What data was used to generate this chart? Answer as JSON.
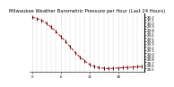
{
  "title": "Milwaukee Weather Barometric Pressure per Hour (Last 24 Hours)",
  "hours": [
    0,
    1,
    2,
    3,
    4,
    5,
    6,
    7,
    8,
    9,
    10,
    11,
    12,
    13,
    14,
    15,
    16,
    17,
    18,
    19,
    20,
    21,
    22,
    23
  ],
  "pressure": [
    30.18,
    30.14,
    30.08,
    29.98,
    29.85,
    29.7,
    29.55,
    29.38,
    29.2,
    29.02,
    28.87,
    28.74,
    28.63,
    28.56,
    28.52,
    28.5,
    28.49,
    28.5,
    28.51,
    28.52,
    28.53,
    28.54,
    28.55,
    28.56
  ],
  "line_color": "#cc0000",
  "marker_color": "#000000",
  "bg_color": "#ffffff",
  "grid_color": "#999999",
  "title_color": "#000000",
  "ylabel_color": "#000000",
  "ylim_min": 28.4,
  "ylim_max": 30.3,
  "yticks": [
    28.5,
    28.6,
    28.7,
    28.8,
    28.9,
    29.0,
    29.1,
    29.2,
    29.3,
    29.4,
    29.5,
    29.6,
    29.7,
    29.8,
    29.9,
    30.0,
    30.1,
    30.2
  ],
  "xticks_major": [
    0,
    6,
    12,
    18
  ],
  "xtick_labels": [
    "0",
    "6",
    "12",
    "18"
  ],
  "title_fontsize": 3.8,
  "tick_fontsize": 2.8,
  "line_width": 0.7,
  "marker_size": 2.5
}
